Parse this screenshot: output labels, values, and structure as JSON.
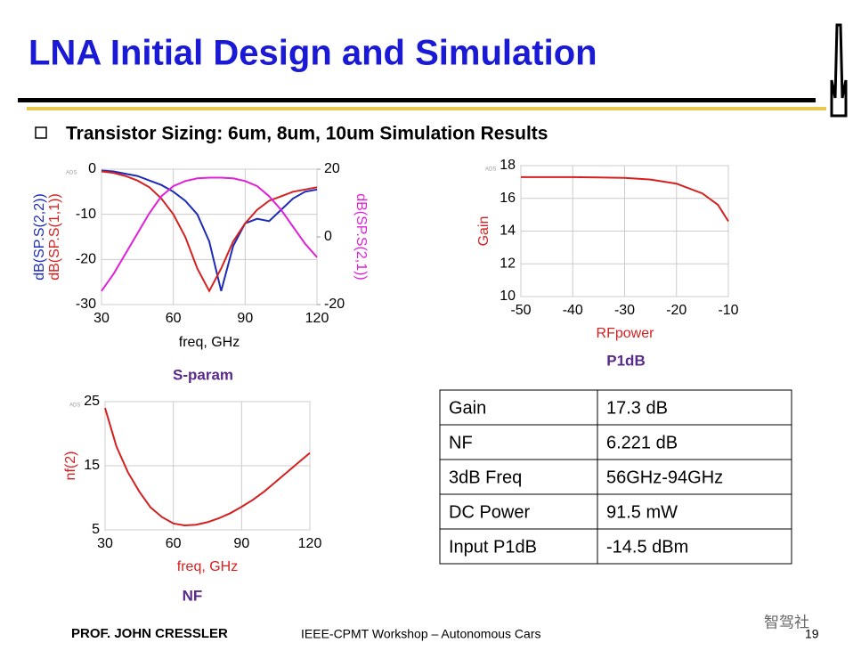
{
  "title": "LNA Initial Design and Simulation",
  "bullet": "Transistor Sizing: 6um, 8um, 10um Simulation Results",
  "chart_data": [
    {
      "type": "line",
      "caption": "S-param",
      "watermark": "ADS",
      "xlabel": "freq, GHz",
      "x": [
        30,
        35,
        40,
        45,
        50,
        55,
        60,
        65,
        70,
        75,
        80,
        85,
        90,
        95,
        100,
        105,
        110,
        115,
        120
      ],
      "xlim": [
        30,
        120
      ],
      "xticks": [
        30,
        60,
        90,
        120
      ],
      "ylim": [
        -30,
        0
      ],
      "yticks": [
        0,
        -10,
        -20,
        -30
      ],
      "y2lim": [
        -20,
        20
      ],
      "y2ticks": [
        20,
        0,
        -20
      ],
      "series": [
        {
          "name": "dB(SP.S(2,2))",
          "color": "#1c2bb8",
          "values": [
            -0.3,
            -0.5,
            -1,
            -1.5,
            -2.5,
            -3.5,
            -5,
            -7,
            -10,
            -16,
            -27,
            -17,
            -12,
            -11,
            -11.5,
            -9,
            -6.5,
            -5,
            -4.5
          ]
        },
        {
          "name": "dB(SP.S(1,1))",
          "color": "#d42020",
          "values": [
            -0.5,
            -0.8,
            -1.5,
            -2.5,
            -4,
            -6.5,
            -10,
            -15,
            -22,
            -27,
            -22,
            -16,
            -12,
            -9,
            -7,
            -6,
            -5,
            -4.5,
            -4
          ]
        },
        {
          "name": "dB(SP.S(2,1))",
          "color": "#e020d8",
          "axis": "y2",
          "values": [
            -16,
            -11,
            -5,
            1,
            7,
            12,
            15,
            16.5,
            17.3,
            17.5,
            17.5,
            17.3,
            16.5,
            15,
            12,
            8,
            3,
            -2,
            -6
          ]
        }
      ]
    },
    {
      "type": "line",
      "caption": "P1dB",
      "watermark": "ADS",
      "xlabel": "RFpower",
      "ylabel": "Gain",
      "label_color": "#d42020",
      "color": "#d42020",
      "x": [
        -50,
        -45,
        -40,
        -35,
        -30,
        -25,
        -20,
        -15,
        -12,
        -10
      ],
      "values": [
        17.3,
        17.3,
        17.3,
        17.28,
        17.25,
        17.15,
        16.9,
        16.3,
        15.6,
        14.6
      ],
      "xlim": [
        -50,
        -10
      ],
      "xticks": [
        -50,
        -40,
        -30,
        -20,
        -10
      ],
      "ylim": [
        10,
        18
      ],
      "yticks": [
        10,
        12,
        14,
        16,
        18
      ]
    },
    {
      "type": "line",
      "caption": "NF",
      "watermark": "ADS",
      "xlabel": "freq, GHz",
      "ylabel": "nf(2)",
      "label_color": "#d42020",
      "color": "#d42020",
      "x": [
        30,
        35,
        40,
        45,
        50,
        55,
        60,
        65,
        70,
        75,
        80,
        85,
        90,
        95,
        100,
        105,
        110,
        115,
        120
      ],
      "values": [
        24,
        18,
        14,
        11,
        8.5,
        7,
        6,
        5.7,
        5.8,
        6.2,
        6.8,
        7.6,
        8.6,
        9.7,
        11,
        12.5,
        14,
        15.5,
        17
      ],
      "xlim": [
        30,
        120
      ],
      "xticks": [
        30,
        60,
        90,
        120
      ],
      "ylim": [
        5,
        25
      ],
      "yticks": [
        5,
        15,
        25
      ]
    }
  ],
  "table": {
    "rows": [
      [
        "Gain",
        "17.3 dB"
      ],
      [
        "NF",
        "6.221 dB"
      ],
      [
        "3dB Freq",
        "56GHz-94GHz"
      ],
      [
        "DC Power",
        "91.5 mW"
      ],
      [
        "Input P1dB",
        "-14.5 dBm"
      ]
    ]
  },
  "footer": {
    "author": "PROF. JOHN CRESSLER",
    "event": "IEEE-CPMT Workshop – Autonomous Cars",
    "page": "19",
    "watermark": "智驾社"
  }
}
